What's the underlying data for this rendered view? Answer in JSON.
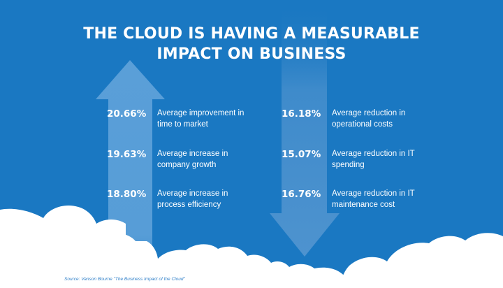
{
  "title": {
    "line1": "THE CLOUD IS HAVING A MEASURABLE",
    "line2": "IMPACT ON BUSINESS"
  },
  "left_stats": [
    {
      "value": "20.66%",
      "line1": "Average improvement in",
      "line2": "time to market"
    },
    {
      "value": "19.63%",
      "line1": "Average increase in",
      "line2": "company growth"
    },
    {
      "value": "18.80%",
      "line1": "Average increase in",
      "line2": "process efficiency"
    }
  ],
  "right_stats": [
    {
      "value": "16.18%",
      "line1": "Average reduction in",
      "line2": "operational costs"
    },
    {
      "value": "15.07%",
      "line1": "Average reduction in IT",
      "line2": "spending"
    },
    {
      "value": "16.76%",
      "line1": "Average reduction in IT",
      "line2": "maintenance cost"
    }
  ],
  "source": "Source: Vanson Bourne \"The Business Impact of the Cloud\"",
  "colors": {
    "background": "#1a78c2",
    "up_arrow": "#5a9fd8",
    "down_arrow": "#4e93cf",
    "cloud": "#ffffff",
    "text": "#ffffff"
  }
}
